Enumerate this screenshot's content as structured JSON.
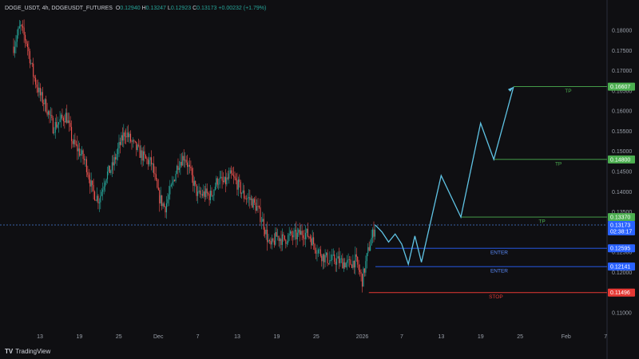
{
  "legend": {
    "symbol": "DOGE_USDT, 4h, DOGEUSDT_FUTURES",
    "open_label": "O",
    "open": "0.12940",
    "high_label": "H",
    "high": "0.13247",
    "low_label": "L",
    "low": "0.12923",
    "close_label": "C",
    "close": "0.13173",
    "change": "+0.00232 (+1.79%)"
  },
  "branding": {
    "logo_mark": "TV",
    "name": "TradingView"
  },
  "colors": {
    "background": "#0f0f12",
    "up": "#26a69a",
    "down": "#ef5350",
    "projection": "#5fc3e4",
    "tp": "#4caf50",
    "enter": "#2962ff",
    "stop": "#e53935",
    "axis_text": "#9aa0aa"
  },
  "chart_data": {
    "type": "candlestick",
    "instrument": "DOGE_USDT",
    "timeframe": "4h",
    "ylim": [
      0.106,
      0.184
    ],
    "y_ticks": [
      0.11,
      0.115,
      0.12,
      0.125,
      0.13,
      0.135,
      0.14,
      0.145,
      0.15,
      0.155,
      0.16,
      0.165,
      0.17,
      0.175,
      0.18
    ],
    "y_tick_labels": [
      "0.11000",
      "0.11500",
      "0.12000",
      "0.12500",
      "0.13000",
      "0.13500",
      "0.14000",
      "0.14500",
      "0.15000",
      "0.15500",
      "0.16000",
      "0.16500",
      "0.17000",
      "0.17500",
      "0.18000"
    ],
    "x_ticks": [
      {
        "label": "13",
        "date": "2025-11-13"
      },
      {
        "label": "19",
        "date": "2025-11-19"
      },
      {
        "label": "25",
        "date": "2025-11-25"
      },
      {
        "label": "Dec",
        "date": "2025-12-01"
      },
      {
        "label": "7",
        "date": "2025-12-07"
      },
      {
        "label": "13",
        "date": "2025-12-13"
      },
      {
        "label": "19",
        "date": "2025-12-19"
      },
      {
        "label": "25",
        "date": "2025-12-25"
      },
      {
        "label": "2026",
        "date": "2026-01-01"
      },
      {
        "label": "7",
        "date": "2026-01-07"
      },
      {
        "label": "13",
        "date": "2026-01-13"
      },
      {
        "label": "19",
        "date": "2026-01-19"
      },
      {
        "label": "25",
        "date": "2026-01-25"
      },
      {
        "label": "Feb",
        "date": "2026-02-01"
      },
      {
        "label": "7",
        "date": "2026-02-07"
      }
    ],
    "price_path": [
      [
        "2025-11-09",
        0.176
      ],
      [
        "2025-11-10",
        0.181
      ],
      [
        "2025-11-11",
        0.177
      ],
      [
        "2025-11-12",
        0.169
      ],
      [
        "2025-11-13",
        0.164
      ],
      [
        "2025-11-14",
        0.161
      ],
      [
        "2025-11-15",
        0.156
      ],
      [
        "2025-11-16",
        0.1575
      ],
      [
        "2025-11-17",
        0.159
      ],
      [
        "2025-11-18",
        0.152
      ],
      [
        "2025-11-19",
        0.15
      ],
      [
        "2025-11-20",
        0.147
      ],
      [
        "2025-11-21",
        0.14
      ],
      [
        "2025-11-22",
        0.138
      ],
      [
        "2025-11-23",
        0.144
      ],
      [
        "2025-11-24",
        0.146
      ],
      [
        "2025-11-25",
        0.151
      ],
      [
        "2025-11-26",
        0.155
      ],
      [
        "2025-11-27",
        0.152
      ],
      [
        "2025-11-28",
        0.15
      ],
      [
        "2025-11-29",
        0.148
      ],
      [
        "2025-11-30",
        0.147
      ],
      [
        "2025-12-01",
        0.139
      ],
      [
        "2025-12-02",
        0.136
      ],
      [
        "2025-12-03",
        0.141
      ],
      [
        "2025-12-04",
        0.147
      ],
      [
        "2025-12-05",
        0.149
      ],
      [
        "2025-12-06",
        0.144
      ],
      [
        "2025-12-07",
        0.139
      ],
      [
        "2025-12-08",
        0.1395
      ],
      [
        "2025-12-09",
        0.139
      ],
      [
        "2025-12-10",
        0.143
      ],
      [
        "2025-12-11",
        0.142
      ],
      [
        "2025-12-12",
        0.144
      ],
      [
        "2025-12-13",
        0.142
      ],
      [
        "2025-12-14",
        0.139
      ],
      [
        "2025-12-15",
        0.138
      ],
      [
        "2025-12-16",
        0.136
      ],
      [
        "2025-12-17",
        0.132
      ],
      [
        "2025-12-18",
        0.126
      ],
      [
        "2025-12-19",
        0.129
      ],
      [
        "2025-12-20",
        0.128
      ],
      [
        "2025-12-21",
        0.129
      ],
      [
        "2025-12-22",
        0.129
      ],
      [
        "2025-12-23",
        0.13
      ],
      [
        "2025-12-24",
        0.129
      ],
      [
        "2025-12-25",
        0.126
      ],
      [
        "2025-12-26",
        0.124
      ],
      [
        "2025-12-27",
        0.123
      ],
      [
        "2025-12-28",
        0.123
      ],
      [
        "2025-12-29",
        0.1225
      ],
      [
        "2025-12-30",
        0.122
      ],
      [
        "2025-12-31",
        0.123
      ],
      [
        "2026-01-01",
        0.118
      ],
      [
        "2026-01-02",
        0.126
      ],
      [
        "2026-01-03",
        0.1317
      ]
    ],
    "projection_path": [
      [
        "2026-01-03",
        0.1317
      ],
      [
        "2026-01-04",
        0.13
      ],
      [
        "2026-01-05",
        0.1275
      ],
      [
        "2026-01-06",
        0.1295
      ],
      [
        "2026-01-07",
        0.127
      ],
      [
        "2026-01-08",
        0.122
      ],
      [
        "2026-01-09",
        0.129
      ],
      [
        "2026-01-10",
        0.1225
      ],
      [
        "2026-01-13",
        0.144
      ],
      [
        "2026-01-16",
        0.1337
      ],
      [
        "2026-01-19",
        0.157
      ],
      [
        "2026-01-21",
        0.148
      ],
      [
        "2026-01-24",
        0.166
      ]
    ],
    "levels": [
      {
        "kind": "tp",
        "label": "TP",
        "price": "0.16607",
        "value": 0.16607,
        "from_date": "2026-01-24"
      },
      {
        "kind": "tp",
        "label": "TP",
        "price": "0.14800",
        "value": 0.148,
        "from_date": "2026-01-21"
      },
      {
        "kind": "tp",
        "label": "TP",
        "price": "0.13370",
        "value": 0.1337,
        "from_date": "2026-01-16"
      },
      {
        "kind": "enter",
        "label": "ENTER",
        "price": "0.12595",
        "value": 0.12595,
        "from_date": "2026-01-03"
      },
      {
        "kind": "enter",
        "label": "ENTER",
        "price": "0.12141",
        "value": 0.12141,
        "from_date": "2026-01-03"
      },
      {
        "kind": "stop",
        "label": "STOP",
        "price": "0.11496",
        "value": 0.11496,
        "from_date": "2026-01-02"
      }
    ],
    "current_price": {
      "price": "0.13173",
      "value": 0.13173,
      "countdown": "02:38:17"
    }
  }
}
